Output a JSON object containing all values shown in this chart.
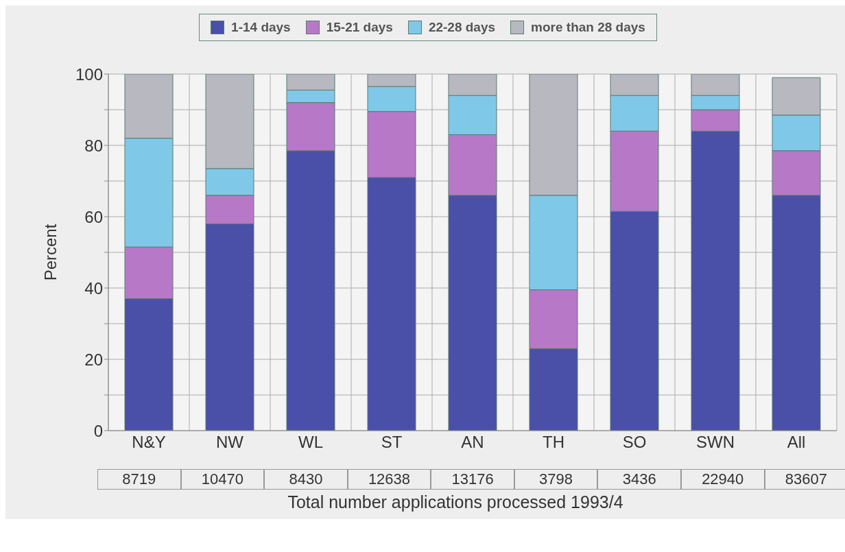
{
  "chart_data": {
    "type": "bar",
    "stacked": true,
    "ylabel": "Percent",
    "xlabel": "Total number applications processed 1993/4",
    "categories": [
      "N&Y",
      "NW",
      "WL",
      "ST",
      "AN",
      "TH",
      "SO",
      "SWN",
      "All"
    ],
    "series": [
      {
        "name": "1-14 days",
        "color": "#4a4fa8",
        "values": [
          37,
          58,
          78.5,
          71,
          66,
          23,
          61.5,
          84,
          66
        ]
      },
      {
        "name": "15-21 days",
        "color": "#b878c8",
        "values": [
          14.5,
          8,
          13.5,
          18.5,
          17,
          16.5,
          22.5,
          6,
          12.5
        ]
      },
      {
        "name": "22-28 days",
        "color": "#80c8e8",
        "values": [
          30.5,
          7.5,
          3.5,
          7,
          11,
          26.5,
          10,
          4,
          10
        ]
      },
      {
        "name": "more than 28 days",
        "color": "#b8b8c0",
        "values": [
          18,
          26.5,
          4.5,
          3.5,
          6,
          34,
          6,
          6,
          10.5
        ]
      }
    ],
    "ylim": [
      0,
      100
    ],
    "yticks": [
      0,
      {
        "value": 10,
        "label": null
      },
      20,
      {
        "value": 30,
        "label": null
      },
      40,
      {
        "value": 50,
        "label": null
      },
      60,
      {
        "value": 70,
        "label": null
      },
      80,
      {
        "value": 90,
        "label": null
      },
      100
    ],
    "grid": true,
    "legend": "top",
    "annotations": [
      "8719",
      "10470",
      "8430",
      "12638",
      "13176",
      "3798",
      "3436",
      "22940",
      "83607"
    ]
  }
}
